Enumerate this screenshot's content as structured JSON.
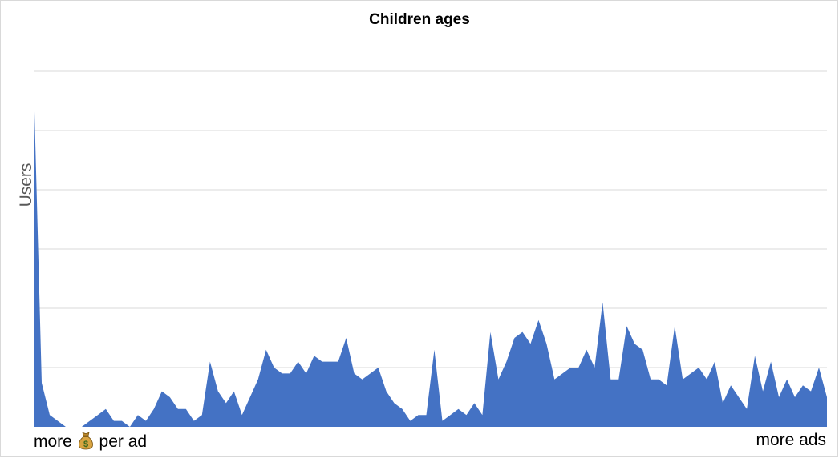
{
  "chart_data": {
    "type": "area",
    "title": "Children ages",
    "ylabel": "Users",
    "xlabel_left_parts": [
      "more",
      "per ad"
    ],
    "xlabel_left_icon": "money-bag-icon",
    "xlabel_right": "more ads",
    "grid": true,
    "ylim": [
      0,
      6
    ],
    "series": [
      {
        "color": "#4472c4",
        "values": [
          5.83,
          0.74,
          0.2,
          0.1,
          0.0,
          0.0,
          0.0,
          0.1,
          0.2,
          0.3,
          0.1,
          0.1,
          0.0,
          0.2,
          0.1,
          0.3,
          0.6,
          0.5,
          0.3,
          0.3,
          0.1,
          0.2,
          1.1,
          0.6,
          0.4,
          0.6,
          0.2,
          0.5,
          0.8,
          1.3,
          1.0,
          0.9,
          0.9,
          1.1,
          0.9,
          1.2,
          1.1,
          1.1,
          1.1,
          1.5,
          0.9,
          0.8,
          0.9,
          1.0,
          0.6,
          0.4,
          0.3,
          0.1,
          0.2,
          0.2,
          1.3,
          0.1,
          0.2,
          0.3,
          0.2,
          0.4,
          0.2,
          1.6,
          0.8,
          1.1,
          1.5,
          1.6,
          1.4,
          1.8,
          1.4,
          0.8,
          0.9,
          1.0,
          1.0,
          1.3,
          1.0,
          2.1,
          0.8,
          0.8,
          1.7,
          1.4,
          1.3,
          0.8,
          0.8,
          0.7,
          1.7,
          0.8,
          0.9,
          1.0,
          0.8,
          1.1,
          0.4,
          0.7,
          0.5,
          0.3,
          1.2,
          0.6,
          1.1,
          0.5,
          0.8,
          0.5,
          0.7,
          0.6,
          1.0,
          0.5
        ]
      }
    ]
  }
}
